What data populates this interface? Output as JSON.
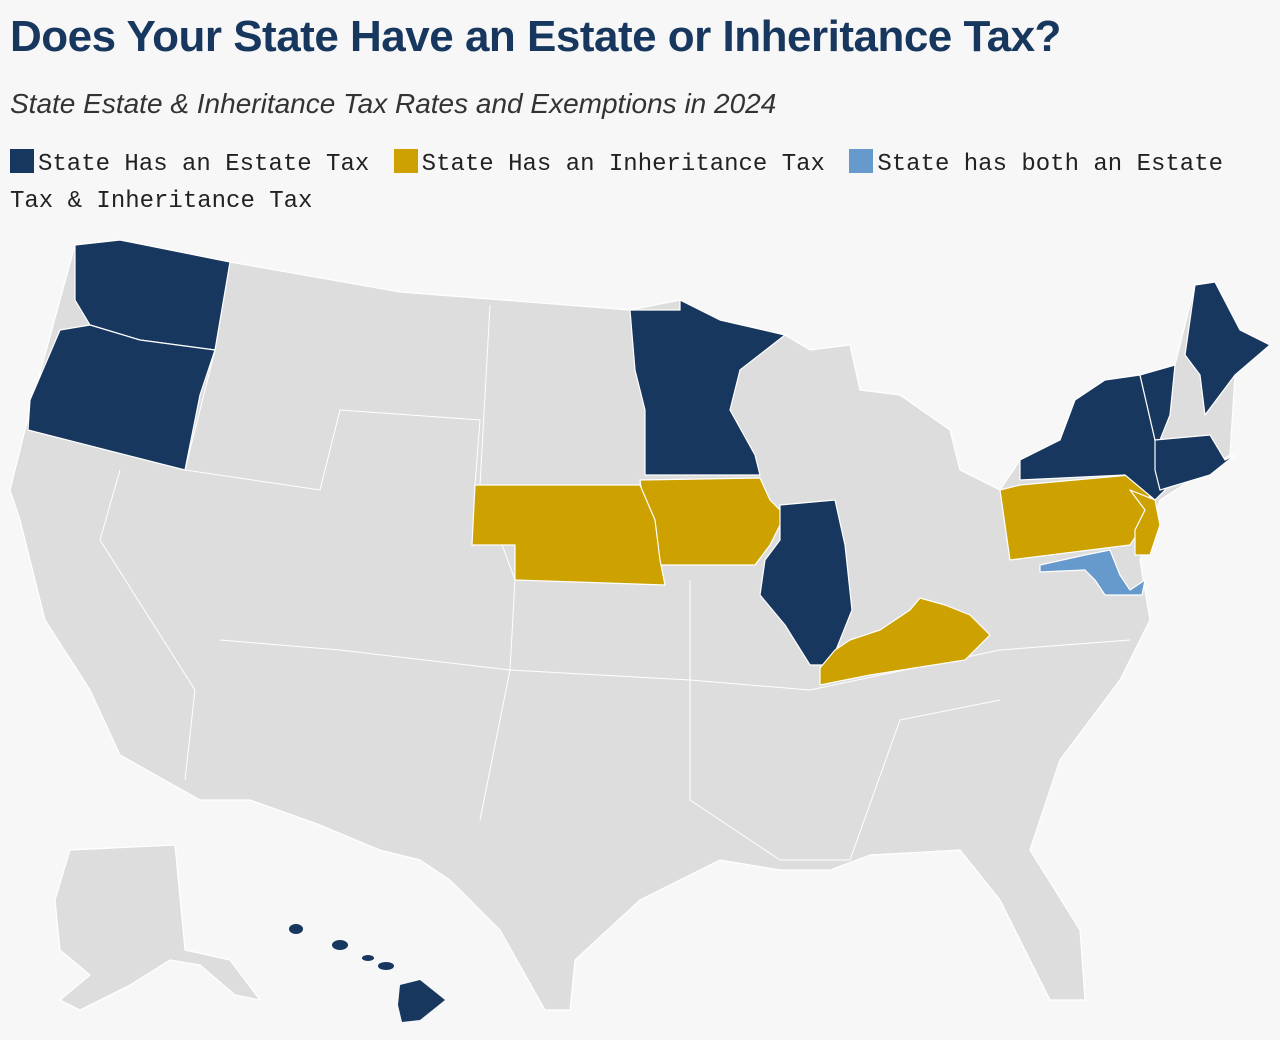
{
  "header": {
    "title": "Does Your State Have an Estate or Inheritance Tax?",
    "subtitle": "State Estate & Inheritance Tax Rates and Exemptions in 2024"
  },
  "legend": [
    {
      "label": "State Has an Estate Tax",
      "color": "#17375e"
    },
    {
      "label": "State Has an Inheritance Tax",
      "color": "#cca100"
    },
    {
      "label": "State has both an Estate Tax & Inheritance Tax",
      "color": "#6699cc"
    }
  ],
  "map": {
    "base_color": "#dddddd"
  }
}
